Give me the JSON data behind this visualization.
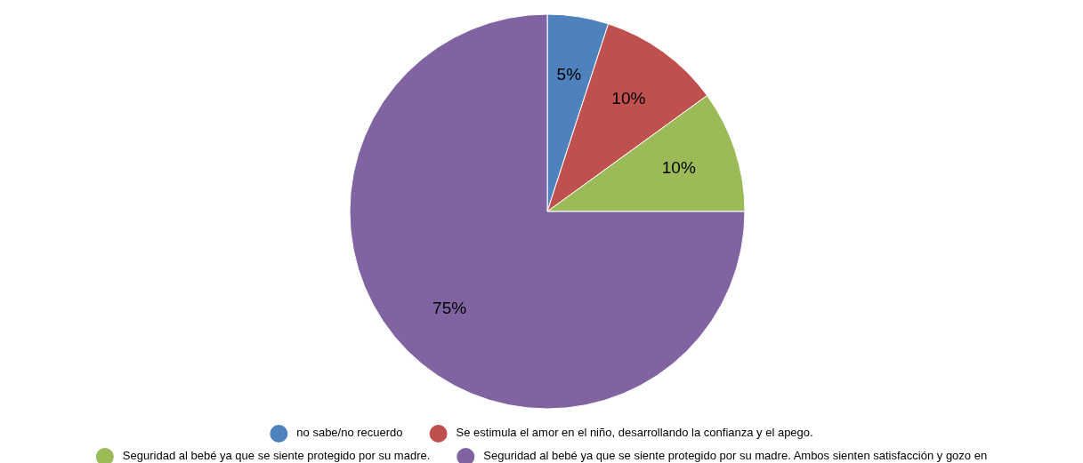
{
  "chart_data": {
    "type": "pie",
    "categories": [
      "no sabe/no recuerdo",
      "Se estimula el amor en el niño, desarrollando la confianza y el apego.",
      "Seguridad al bebé ya que se siente protegido por su madre.",
      "Seguridad al bebé ya que se siente protegido por su madre. Ambos sienten satisfacción y gozo en"
    ],
    "values": [
      5,
      10,
      10,
      75
    ],
    "value_labels": [
      "5%",
      "10%",
      "10%",
      "75%"
    ],
    "colors": [
      "#4f81bd",
      "#c0504d",
      "#9bbb59",
      "#8064a2"
    ],
    "legend": "bottom"
  }
}
